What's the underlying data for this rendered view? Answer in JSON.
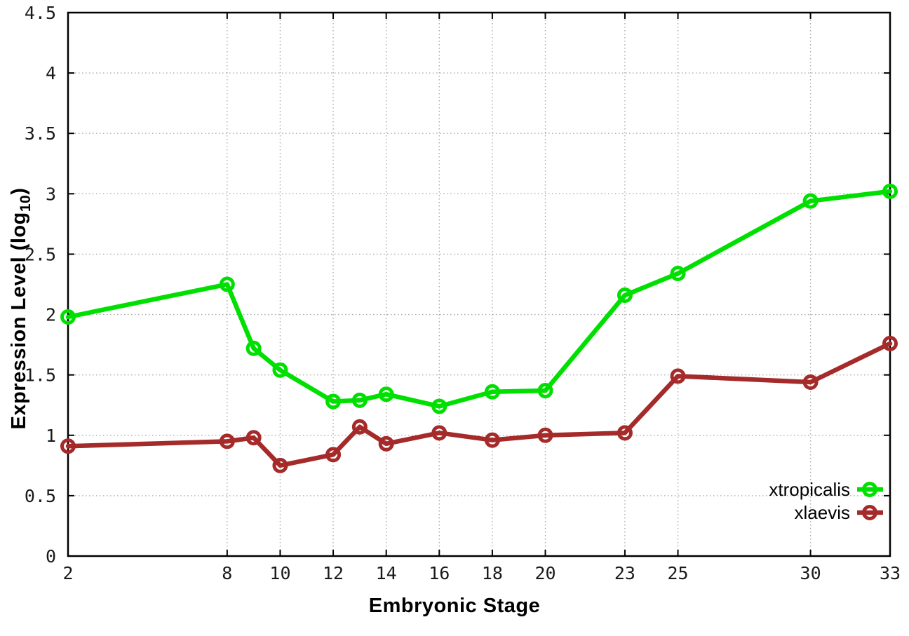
{
  "chart_data": {
    "type": "line",
    "title": "",
    "xlabel": "Embryonic Stage",
    "ylabel": "Expression Level (log10)",
    "ylabel_parts": {
      "prefix": "Expression Level (log",
      "sub": "10",
      "suffix": ")"
    },
    "x": [
      2,
      8,
      9,
      10,
      12,
      13,
      14,
      16,
      18,
      20,
      23,
      25,
      30,
      33
    ],
    "series": [
      {
        "name": "xtropicalis",
        "color": "#00e000",
        "values": [
          1.98,
          2.25,
          1.72,
          1.54,
          1.28,
          1.29,
          1.34,
          1.24,
          1.36,
          1.37,
          2.16,
          2.34,
          2.94,
          3.02
        ]
      },
      {
        "name": "xlaevis",
        "color": "#a52a2a",
        "values": [
          0.91,
          0.95,
          0.98,
          0.75,
          0.84,
          1.07,
          0.93,
          1.02,
          0.96,
          1.0,
          1.02,
          1.49,
          1.44,
          1.76
        ]
      }
    ],
    "xlim": [
      2,
      33
    ],
    "ylim": [
      0,
      4.5
    ],
    "xticks": [
      2,
      8,
      10,
      12,
      14,
      16,
      18,
      20,
      23,
      25,
      30,
      33
    ],
    "yticks": [
      0,
      0.5,
      1,
      1.5,
      2,
      2.5,
      3,
      3.5,
      4,
      4.5
    ],
    "grid": true,
    "marker": "open-circle",
    "legend_position": "inside bottom right",
    "legend_entries": [
      "xtropicalis",
      "xlaevis"
    ]
  },
  "style_colors": {
    "axis": "#000000",
    "grid": "#aaaaaa",
    "tick_text": "#1a1a1a"
  }
}
